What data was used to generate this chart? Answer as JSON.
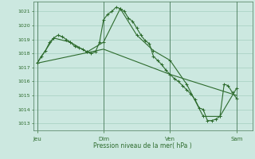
{
  "background_color": "#cce8e0",
  "grid_color": "#9ac8b8",
  "line_color": "#2d6b2d",
  "xlabel": "Pression niveau de la mer( hPa )",
  "ylim": [
    1012.5,
    1021.7
  ],
  "yticks": [
    1013,
    1014,
    1015,
    1016,
    1017,
    1018,
    1019,
    1020,
    1021
  ],
  "day_labels": [
    "Jeu",
    "Dim",
    "Ven",
    "Sam"
  ],
  "day_positions": [
    0.0,
    0.333,
    0.667,
    1.0
  ],
  "series1_x": [
    0.0,
    0.021,
    0.042,
    0.063,
    0.083,
    0.104,
    0.125,
    0.146,
    0.167,
    0.188,
    0.208,
    0.229,
    0.25,
    0.271,
    0.292,
    0.313,
    0.333,
    0.354,
    0.375,
    0.396,
    0.417,
    0.438,
    0.458,
    0.479,
    0.5,
    0.521,
    0.542,
    0.563,
    0.583,
    0.604,
    0.625,
    0.646,
    0.667,
    0.688,
    0.708,
    0.729,
    0.75,
    0.771,
    0.792,
    0.813,
    0.833,
    0.854,
    0.875,
    0.896,
    0.917,
    0.938,
    0.958,
    0.979,
    1.0
  ],
  "series1_y": [
    1017.3,
    1017.8,
    1018.2,
    1018.8,
    1019.1,
    1019.3,
    1019.2,
    1019.0,
    1018.8,
    1018.5,
    1018.4,
    1018.3,
    1018.1,
    1018.0,
    1018.1,
    1018.8,
    1020.4,
    1020.8,
    1021.0,
    1021.3,
    1021.2,
    1021.0,
    1020.5,
    1020.3,
    1019.8,
    1019.3,
    1018.9,
    1018.7,
    1017.8,
    1017.5,
    1017.2,
    1016.8,
    1016.5,
    1016.2,
    1016.0,
    1015.7,
    1015.4,
    1015.1,
    1014.7,
    1014.1,
    1014.0,
    1013.2,
    1013.2,
    1013.3,
    1013.5,
    1015.8,
    1015.7,
    1015.2,
    1014.8
  ],
  "series2_x": [
    0.0,
    0.083,
    0.167,
    0.25,
    0.333,
    0.417,
    0.5,
    0.583,
    0.667,
    0.75,
    0.833,
    0.917,
    1.0
  ],
  "series2_y": [
    1017.3,
    1019.1,
    1018.8,
    1018.1,
    1018.8,
    1021.2,
    1019.3,
    1018.2,
    1017.5,
    1015.8,
    1013.5,
    1013.5,
    1015.5
  ],
  "series3_x": [
    0.0,
    0.333,
    0.667,
    1.0
  ],
  "series3_y": [
    1017.3,
    1018.3,
    1016.5,
    1015.0
  ]
}
